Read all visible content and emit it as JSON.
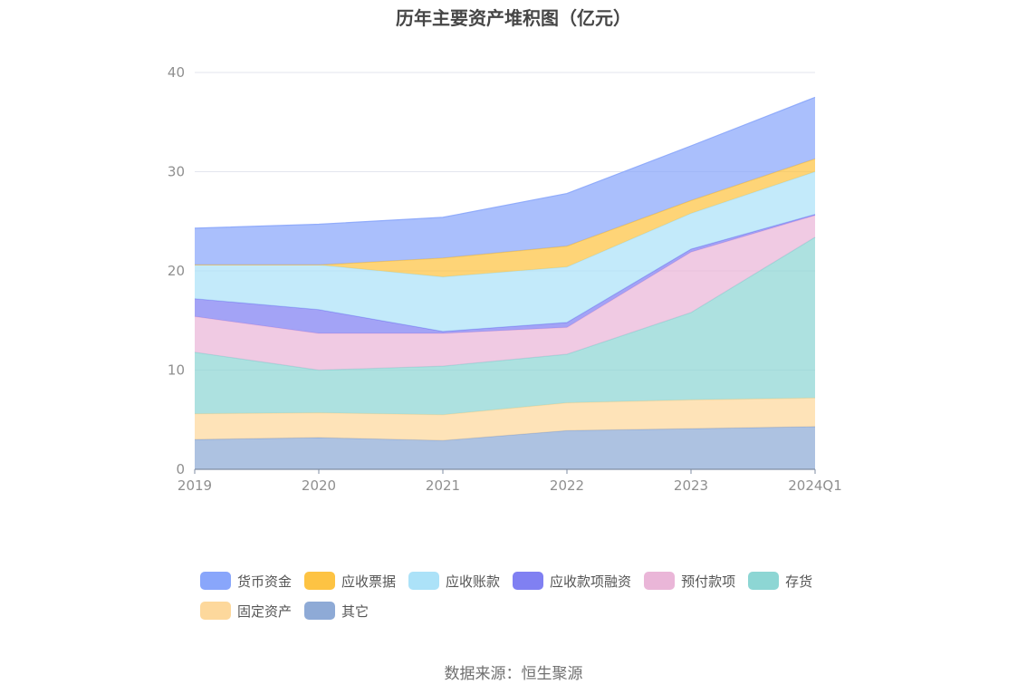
{
  "chart_data": {
    "type": "area",
    "stacked": true,
    "title": "历年主要资产堆积图（亿元）",
    "xlabel": "",
    "ylabel": "",
    "categories": [
      "2019",
      "2020",
      "2021",
      "2022",
      "2023",
      "2024Q1"
    ],
    "ylim": [
      0,
      40
    ],
    "yticks": [
      0,
      10,
      20,
      30,
      40
    ],
    "grid": true,
    "legend_position": "bottom",
    "series": [
      {
        "name": "其它",
        "color": "#8eaad6",
        "values": [
          3.0,
          3.2,
          2.9,
          3.9,
          4.1,
          4.3
        ]
      },
      {
        "name": "固定资产",
        "color": "#fdd89c",
        "values": [
          2.6,
          2.5,
          2.6,
          2.8,
          2.9,
          2.9
        ]
      },
      {
        "name": "存货",
        "color": "#8dd6d4",
        "values": [
          6.2,
          4.3,
          4.9,
          4.9,
          8.8,
          16.2
        ]
      },
      {
        "name": "预付款项",
        "color": "#eab6d8",
        "values": [
          3.6,
          3.7,
          3.3,
          2.7,
          6.1,
          2.2
        ]
      },
      {
        "name": "应收款项融资",
        "color": "#8080f2",
        "values": [
          1.8,
          2.4,
          0.2,
          0.5,
          0.3,
          0.1
        ]
      },
      {
        "name": "应收账款",
        "color": "#ace2f8",
        "values": [
          3.4,
          4.5,
          5.5,
          5.6,
          3.6,
          4.3
        ]
      },
      {
        "name": "应收票据",
        "color": "#fdc343",
        "values": [
          0.0,
          0.0,
          1.9,
          2.1,
          1.3,
          1.3
        ]
      },
      {
        "name": "货币资金",
        "color": "#89a6fb",
        "values": [
          3.7,
          4.1,
          4.1,
          5.3,
          5.5,
          6.2
        ]
      }
    ],
    "legend_order": [
      "货币资金",
      "应收票据",
      "应收账款",
      "应收款项融资",
      "预付款项",
      "存货",
      "固定资产",
      "其它"
    ]
  },
  "source": "数据来源：恒生聚源"
}
